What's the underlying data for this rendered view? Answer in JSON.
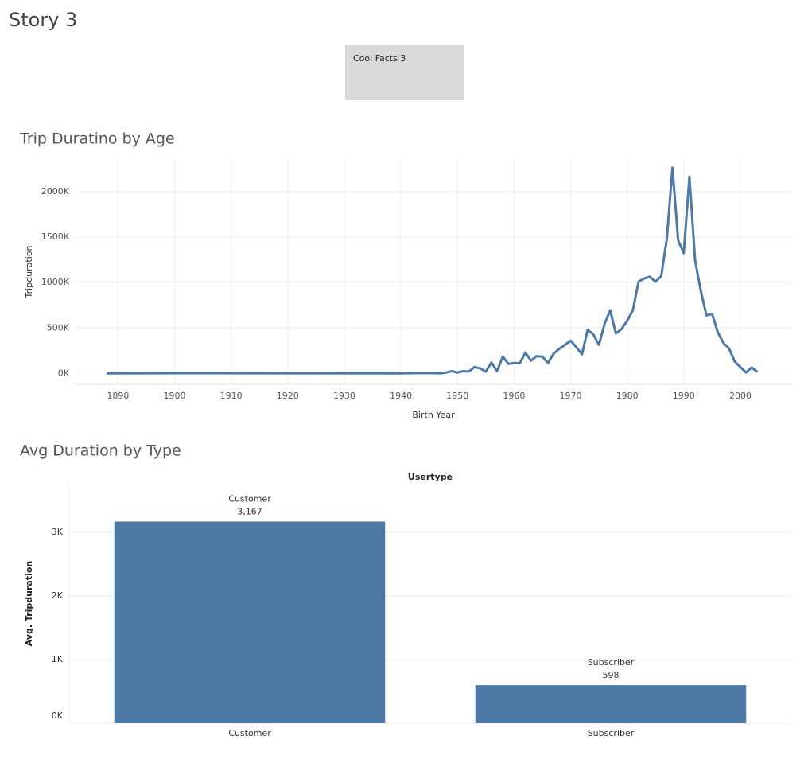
{
  "title": "Story 3",
  "caption": "Cool Facts 3",
  "chart_data": [
    {
      "type": "line",
      "title": "Trip Duratino by Age",
      "x_label": "Birth Year",
      "y_label": "Tripduration",
      "color": "#4e79a7",
      "grid": true,
      "x": [
        1888,
        1900,
        1920,
        1940,
        1944,
        1947,
        1948,
        1949,
        1950,
        1951,
        1952,
        1953,
        1954,
        1955,
        1956,
        1957,
        1958,
        1959,
        1960,
        1961,
        1962,
        1963,
        1964,
        1965,
        1966,
        1967,
        1968,
        1969,
        1970,
        1971,
        1972,
        1973,
        1974,
        1975,
        1976,
        1977,
        1978,
        1979,
        1980,
        1981,
        1982,
        1983,
        1984,
        1985,
        1986,
        1987,
        1988,
        1989,
        1990,
        1991,
        1992,
        1993,
        1994,
        1995,
        1996,
        1997,
        1998,
        1999,
        2000,
        2001,
        2002,
        2003
      ],
      "values": [
        1000,
        3000,
        2000,
        1000,
        5000,
        2000,
        10000,
        25000,
        10000,
        25000,
        20000,
        70000,
        55000,
        20000,
        120000,
        25000,
        185000,
        105000,
        115000,
        110000,
        230000,
        140000,
        190000,
        185000,
        115000,
        220000,
        270000,
        315000,
        360000,
        290000,
        210000,
        480000,
        430000,
        315000,
        545000,
        695000,
        440000,
        490000,
        580000,
        695000,
        1010000,
        1045000,
        1065000,
        1010000,
        1070000,
        1480000,
        2265000,
        1465000,
        1325000,
        2165000,
        1240000,
        910000,
        640000,
        655000,
        455000,
        335000,
        275000,
        130000,
        70000,
        10000,
        65000,
        15000
      ],
      "xlim": [
        1882.5,
        2009
      ],
      "xticks": [
        1890,
        1900,
        1910,
        1920,
        1930,
        1940,
        1950,
        1960,
        1970,
        1980,
        1990,
        2000
      ],
      "ylim": [
        -120000,
        2360000
      ],
      "yticks": [
        {
          "value": 0,
          "label": "0K"
        },
        {
          "value": 500000,
          "label": "500K"
        },
        {
          "value": 1000000,
          "label": "1000K"
        },
        {
          "value": 1500000,
          "label": "1500K"
        },
        {
          "value": 2000000,
          "label": "2000K"
        }
      ]
    },
    {
      "type": "bar",
      "title": "Avg Duration by Type",
      "header": "Usertype",
      "y_label": "Avg. Tripduration",
      "color": "#4e79a7",
      "grid": true,
      "categories": [
        "Customer",
        "Subscriber"
      ],
      "values": [
        3167,
        598
      ],
      "value_labels": [
        "3,167",
        "598"
      ],
      "ylim": [
        0,
        3760
      ],
      "yticks": [
        {
          "value": 0,
          "label": "0K"
        },
        {
          "value": 1000,
          "label": "1K"
        },
        {
          "value": 2000,
          "label": "2K"
        },
        {
          "value": 3000,
          "label": "3K"
        }
      ]
    }
  ]
}
